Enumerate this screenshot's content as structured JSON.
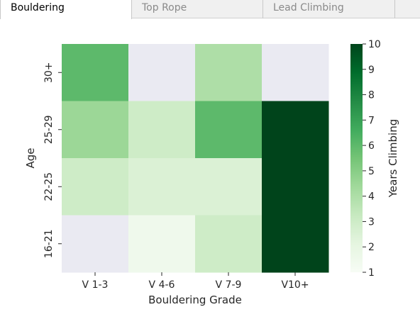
{
  "tabs": [
    {
      "label": "Bouldering",
      "active": true
    },
    {
      "label": "Top Rope",
      "active": false
    },
    {
      "label": "Lead Climbing",
      "active": false
    }
  ],
  "chart_data": {
    "type": "heatmap",
    "xlabel": "Bouldering Grade",
    "ylabel": "Age",
    "colorbar_label": "Years Climbing",
    "x_categories": [
      "V 1-3",
      "V 4-6",
      "V 7-9",
      "V10+"
    ],
    "y_categories": [
      "30+",
      "25-29",
      "22-25",
      "16-21"
    ],
    "values": [
      [
        6,
        null,
        4,
        null
      ],
      [
        4.5,
        3,
        6,
        10
      ],
      [
        3,
        2.5,
        2.5,
        10
      ],
      [
        null,
        1.5,
        3,
        10
      ]
    ],
    "missing_color": "#eaeaf2",
    "colorbar_range": [
      1,
      10
    ],
    "colorbar_ticks": [
      1,
      2,
      3,
      4,
      5,
      6,
      7,
      8,
      9,
      10
    ],
    "colormap": "Greens",
    "grid": false
  }
}
